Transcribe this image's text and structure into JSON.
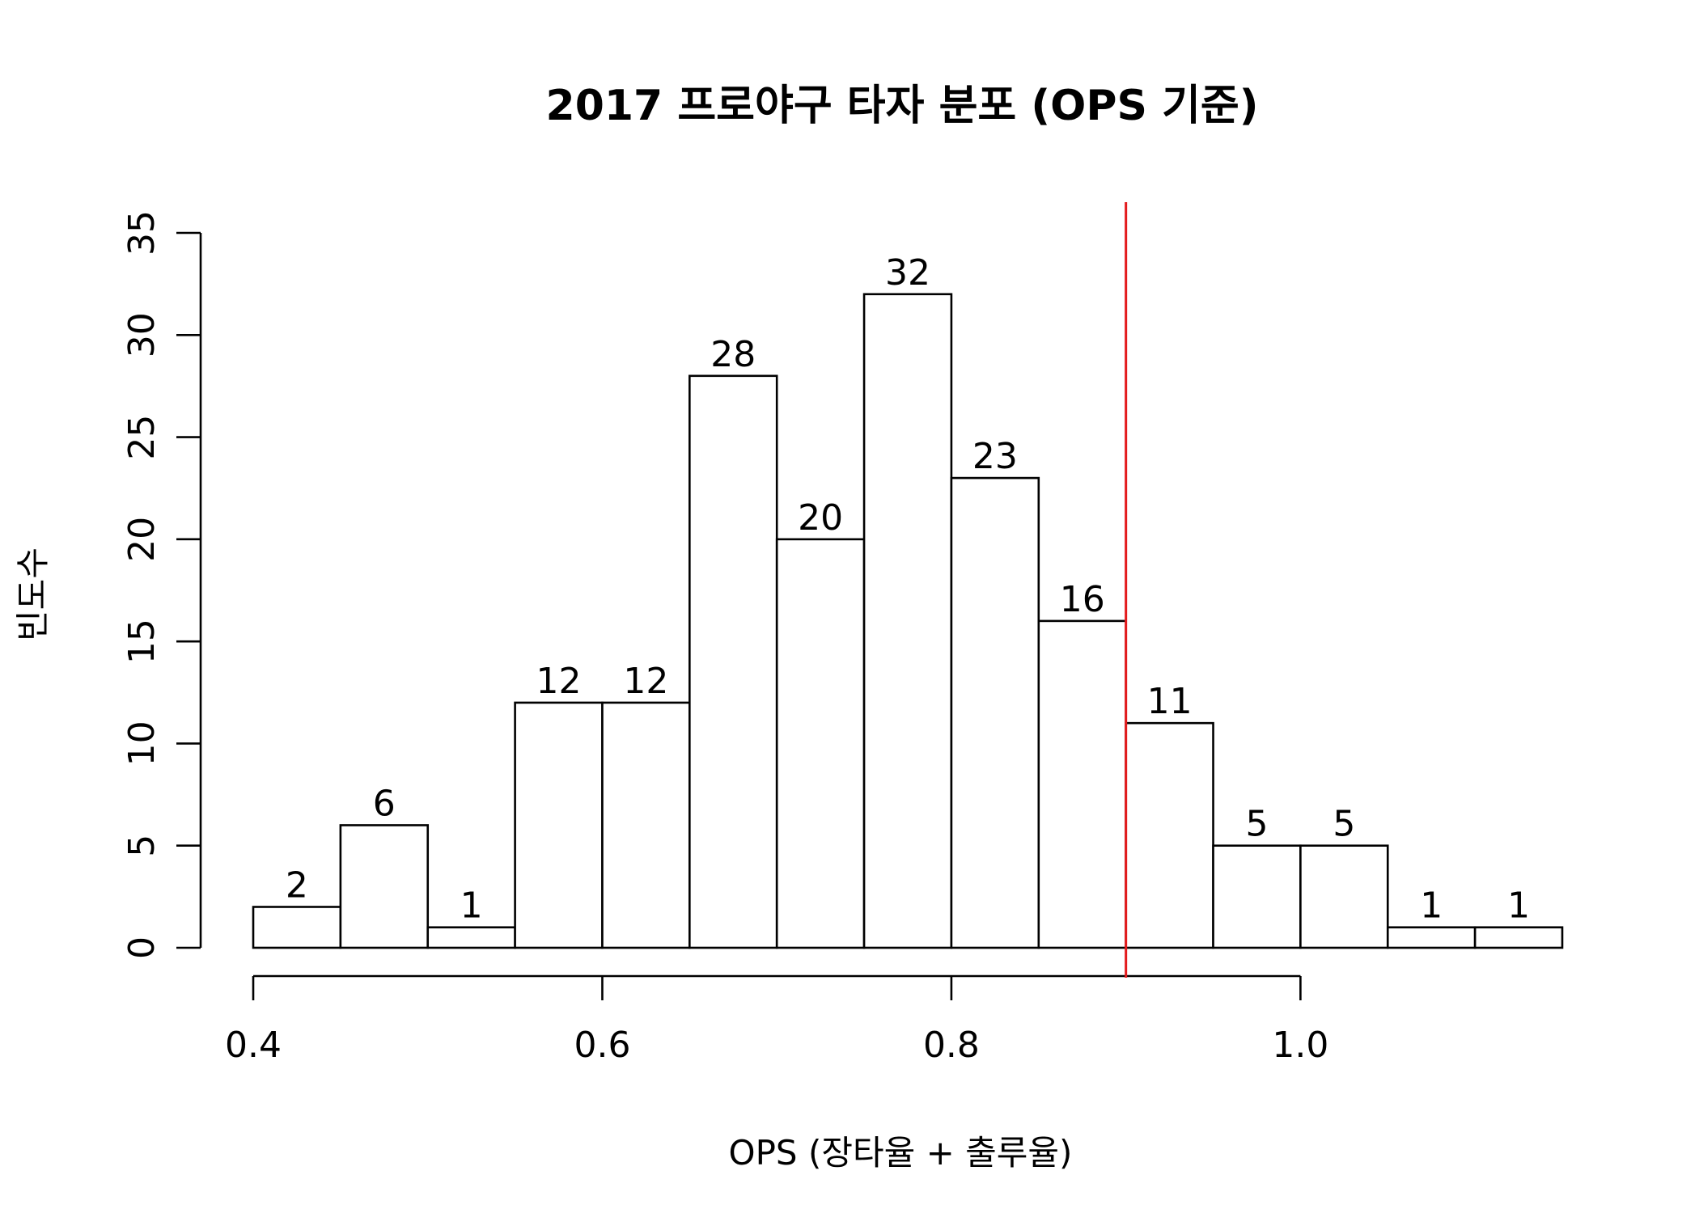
{
  "chart_data": {
    "type": "bar",
    "title": "2017 프로야구 타자 분포 (OPS 기준)",
    "xlabel": "OPS (장타율 + 출루율)",
    "ylabel": "빈도수",
    "bin_edges": [
      0.4,
      0.45,
      0.5,
      0.55,
      0.6,
      0.65,
      0.7,
      0.75,
      0.8,
      0.85,
      0.9,
      0.95,
      1.0,
      1.05,
      1.1,
      1.15
    ],
    "values": [
      2,
      6,
      1,
      12,
      12,
      28,
      20,
      32,
      23,
      16,
      11,
      5,
      5,
      1,
      1
    ],
    "data_labels": [
      "2",
      "6",
      "1",
      "12",
      "12",
      "28",
      "20",
      "32",
      "23",
      "16",
      "11",
      "5",
      "5",
      "1",
      "1"
    ],
    "xlim": [
      0.4,
      1.15
    ],
    "ylim": [
      0,
      35
    ],
    "x_ticks": [
      0.4,
      0.6,
      0.8,
      1.0
    ],
    "x_tick_labels": [
      "0.4",
      "0.6",
      "0.8",
      "1.0"
    ],
    "y_ticks": [
      0,
      5,
      10,
      15,
      20,
      25,
      30,
      35
    ],
    "y_tick_labels": [
      "0",
      "5",
      "10",
      "15",
      "20",
      "25",
      "30",
      "35"
    ],
    "reference_line": {
      "x": 0.9,
      "color": "#e31a1c"
    },
    "bar_fill": "#ffffff",
    "bar_stroke": "#000000",
    "grid": false,
    "legend": "none"
  }
}
